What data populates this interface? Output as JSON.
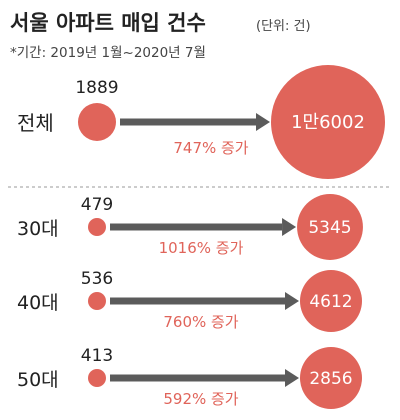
{
  "colors": {
    "circle": "#e0645a",
    "arrow": "#5b5b5b",
    "growth_text": "#e0645a",
    "label_text": "#222222",
    "divider": "#9a9a9a",
    "circle_value_text": "#ffffff"
  },
  "chart_data": {
    "type": "comparison-bubbles",
    "title": "서울 아파트 매입 건수",
    "unit_note": "(단위: 건)",
    "subtitle": "*기간: 2019년 1월~2020년 7월",
    "rows": [
      {
        "category": "전체",
        "before_label": "1889",
        "before": 1889,
        "after_label": "1만6002",
        "after": 16002,
        "growth_label": "747% 증가",
        "growth_pct": 747
      },
      {
        "category": "30대",
        "before_label": "479",
        "before": 479,
        "after_label": "5345",
        "after": 5345,
        "growth_label": "1016% 증가",
        "growth_pct": 1016
      },
      {
        "category": "40대",
        "before_label": "536",
        "before": 536,
        "after_label": "4612",
        "after": 4612,
        "growth_label": "760% 증가",
        "growth_pct": 760
      },
      {
        "category": "50대",
        "before_label": "413",
        "before": 413,
        "after_label": "2856",
        "after": 2856,
        "growth_label": "592% 증가",
        "growth_pct": 592
      }
    ]
  }
}
